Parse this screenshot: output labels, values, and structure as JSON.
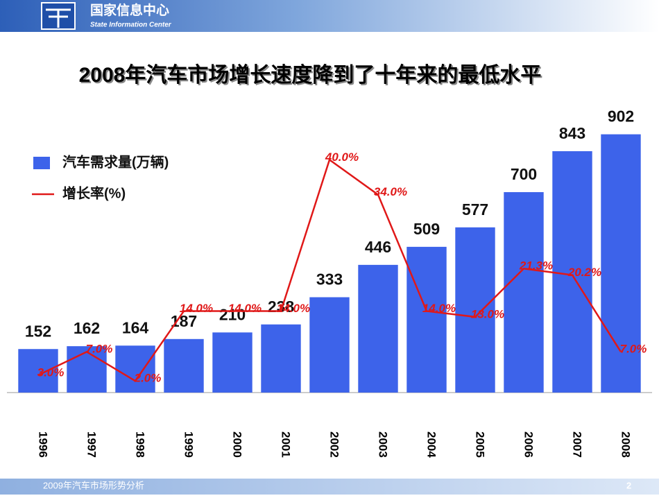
{
  "header": {
    "org": "国家信息中心",
    "org_en": "State Information Center"
  },
  "footer": {
    "text": "2009年汽车市场形势分析",
    "page": "2"
  },
  "chart_data": {
    "type": "bar",
    "title": "2008年汽车市场增长速度降到了十年来的最低水平",
    "categories": [
      "1996",
      "1997",
      "1998",
      "1999",
      "2000",
      "2001",
      "2002",
      "2003",
      "2004",
      "2005",
      "2006",
      "2007",
      "2008"
    ],
    "series": [
      {
        "name": "汽车需求量(万辆)",
        "type": "bar",
        "color": "#3d63ea",
        "values": [
          152,
          162,
          164,
          187,
          210,
          238,
          333,
          446,
          509,
          577,
          700,
          843,
          902
        ]
      },
      {
        "name": "增长率(%)",
        "type": "line",
        "axis": "y2",
        "color": "#e01818",
        "values": [
          3.0,
          7.0,
          2.0,
          14.0,
          14.0,
          14.0,
          40.0,
          34.0,
          14.0,
          13.0,
          21.3,
          20.2,
          7.0
        ],
        "value_labels": [
          "3.0%",
          "7.0%",
          "2.0%",
          "14.0%",
          "14.0%",
          "14.0%",
          "40.0%",
          "34.0%",
          "14.0%",
          "13.0%",
          "21.3%",
          "20.2%",
          "7.0%"
        ]
      }
    ],
    "ylim": [
      0,
      935
    ],
    "y2lim": [
      0,
      46
    ],
    "legend": "top-left"
  }
}
